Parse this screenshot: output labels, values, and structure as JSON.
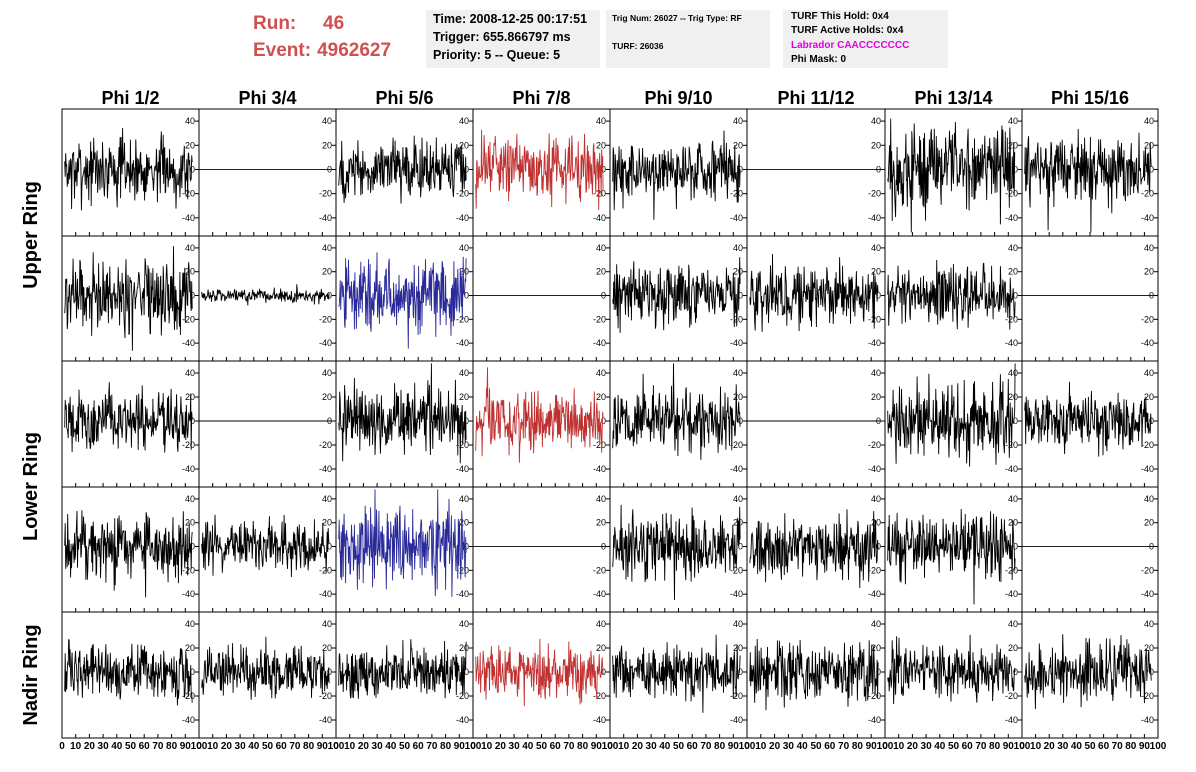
{
  "header": {
    "run_label": "Run:",
    "run_value": "46",
    "event_label": "Event:",
    "event_value": "4962627",
    "time": "Time: 2008-12-25 00:17:51",
    "trigger": "Trigger: 655.866797 ms",
    "priority": "Priority: 5 -- Queue: 5",
    "trig_num": "Trig Num: 26027 -- Trig Type: RF",
    "turf": "TURF: 26036",
    "turf_this_hold": "TURF This Hold: 0x4",
    "turf_active_holds": "TURF Active Holds: 0x4",
    "labrador": "Labrador CAACCCCCCC",
    "phi_mask": "Phi Mask: 0"
  },
  "colors": {
    "header_red": "#d05050",
    "magenta": "#e000e0",
    "trace_black": "#000000",
    "trace_red": "#c03030",
    "trace_blue": "#2a2a9a",
    "info_box": "#f0f0f0"
  },
  "chart_data": {
    "type": "line",
    "columns": [
      "Phi 1/2",
      "Phi 3/4",
      "Phi 5/6",
      "Phi 7/8",
      "Phi 9/10",
      "Phi 11/12",
      "Phi 13/14",
      "Phi 15/16"
    ],
    "row_labels": [
      "Upper Ring",
      "Lower Ring",
      "Nadir Ring"
    ],
    "xlim": [
      0,
      100
    ],
    "ylim": [
      -55,
      50
    ],
    "xticks": [
      "0",
      "10",
      "20",
      "30",
      "40",
      "50",
      "60",
      "70",
      "80",
      "90",
      "100"
    ],
    "yticks": [
      "40",
      "20",
      "0",
      "-20",
      "-40"
    ],
    "ytick_values": [
      40,
      20,
      0,
      -20,
      -40
    ],
    "panels": [
      [
        {
          "style": "noise",
          "amp": 15,
          "color": "black"
        },
        {
          "style": "flat",
          "color": "black"
        },
        {
          "style": "noise",
          "amp": 14,
          "color": "black"
        },
        {
          "style": "noise",
          "amp": 15,
          "color": "red"
        },
        {
          "style": "noise",
          "amp": 15,
          "color": "black"
        },
        {
          "style": "flat",
          "color": "black"
        },
        {
          "style": "noise",
          "amp": 20,
          "color": "black"
        },
        {
          "style": "noise",
          "amp": 16,
          "color": "black"
        }
      ],
      [
        {
          "style": "noise",
          "amp": 18,
          "color": "black"
        },
        {
          "style": "noise",
          "amp": 3,
          "color": "black"
        },
        {
          "style": "noise",
          "amp": 18,
          "color": "blue"
        },
        {
          "style": "flat",
          "color": "black"
        },
        {
          "style": "noise",
          "amp": 14,
          "color": "black"
        },
        {
          "style": "noise",
          "amp": 15,
          "color": "black"
        },
        {
          "style": "noise",
          "amp": 15,
          "color": "black"
        },
        {
          "style": "flat",
          "color": "black"
        }
      ],
      [
        {
          "style": "noise",
          "amp": 14,
          "color": "black"
        },
        {
          "style": "flat",
          "color": "black"
        },
        {
          "style": "noise",
          "amp": 16,
          "color": "black"
        },
        {
          "style": "noise",
          "amp": 15,
          "color": "red"
        },
        {
          "style": "noise",
          "amp": 15,
          "color": "black"
        },
        {
          "style": "flat",
          "color": "black"
        },
        {
          "style": "noise",
          "amp": 18,
          "color": "black"
        },
        {
          "style": "noise",
          "amp": 14,
          "color": "black"
        }
      ],
      [
        {
          "style": "noise",
          "amp": 16,
          "color": "black"
        },
        {
          "style": "noise",
          "amp": 12,
          "color": "black"
        },
        {
          "style": "noise",
          "amp": 19,
          "color": "blue"
        },
        {
          "style": "flat",
          "color": "black"
        },
        {
          "style": "noise",
          "amp": 16,
          "color": "black"
        },
        {
          "style": "noise",
          "amp": 15,
          "color": "black"
        },
        {
          "style": "noise",
          "amp": 15,
          "color": "black"
        },
        {
          "style": "flat",
          "color": "black"
        }
      ],
      [
        {
          "style": "noise",
          "amp": 13,
          "color": "black"
        },
        {
          "style": "noise",
          "amp": 12,
          "color": "black"
        },
        {
          "style": "noise",
          "amp": 12,
          "color": "black"
        },
        {
          "style": "noise",
          "amp": 14,
          "color": "red"
        },
        {
          "style": "noise",
          "amp": 13,
          "color": "black"
        },
        {
          "style": "noise",
          "amp": 15,
          "color": "black"
        },
        {
          "style": "noise",
          "amp": 13,
          "color": "black"
        },
        {
          "style": "noise",
          "amp": 14,
          "color": "black"
        }
      ]
    ]
  }
}
